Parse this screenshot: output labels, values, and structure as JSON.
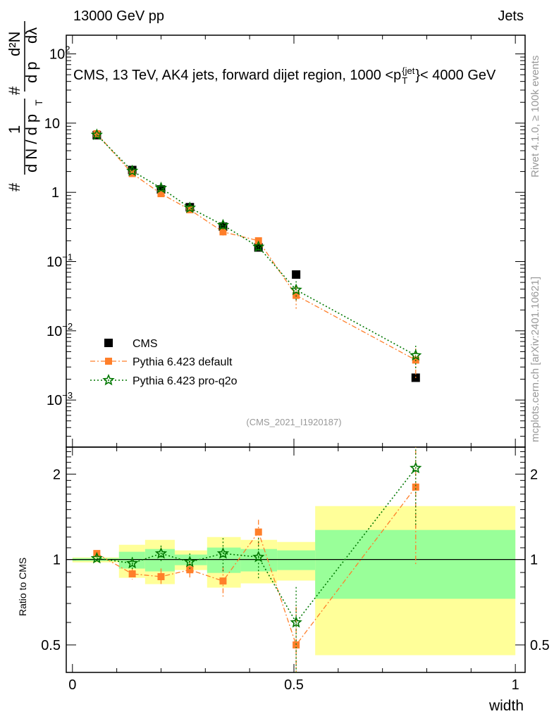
{
  "header": {
    "left": "13000 GeV pp",
    "right": "Jets"
  },
  "side_labels": {
    "rivet": "Rivet 4.1.0, ≥ 100k events",
    "mcplots": "mcplots.cern.ch [arXiv:2401.10621]"
  },
  "colors": {
    "cms": "#000000",
    "default": "#ff7f2a",
    "proq2o": "#007700",
    "band_yellow": "#ffff99",
    "band_green": "#99ff99"
  },
  "chart_data": {
    "type": "line",
    "title": "CMS, 13 TeV, AK4 jets, forward dijet region, 1000 <p_T^{jet}< 4000 GeV",
    "title_parts": {
      "main": "CMS, 13 TeV, AK4 jets, forward dijet region, 1000 <p",
      "sup": "{jet",
      "sub": "T",
      "tail": "}< 4000 GeV"
    },
    "ylabel_parts": {
      "num1": "1",
      "den1": "d N / d p",
      "sub": "T",
      "hash": "#",
      "num2": "d²N",
      "den2": "d p",
      "den2b": "dλ",
      "hash2": "#"
    },
    "xlabel": "width",
    "ratio_ylabel": "Ratio to CMS",
    "analysis_label": "(CMS_2021_I1920187)",
    "x": [
      0.055,
      0.135,
      0.2,
      0.265,
      0.34,
      0.42,
      0.505,
      0.775
    ],
    "bin_edges": [
      0,
      0.105,
      0.164,
      0.231,
      0.304,
      0.38,
      0.462,
      0.548,
      1.0
    ],
    "xlim": [
      -0.014,
      1.022
    ],
    "main_ylim_log10": [
      -3.68,
      2.27
    ],
    "ratio_ylim": [
      0.4,
      2.49
    ],
    "x_ticks": [
      {
        "v": 0,
        "label": "0"
      },
      {
        "v": 0.5,
        "label": "0.5"
      },
      {
        "v": 1,
        "label": "1"
      }
    ],
    "y_ticks": [
      {
        "v": 2,
        "base": "10",
        "exp": "2"
      },
      {
        "v": 1,
        "base": "10",
        "exp": ""
      },
      {
        "v": 0,
        "base": "1",
        "exp": ""
      },
      {
        "v": -1,
        "base": "10",
        "exp": "−1"
      },
      {
        "v": -2,
        "base": "10",
        "exp": "−2"
      },
      {
        "v": -3,
        "base": "10",
        "exp": "−3"
      }
    ],
    "ratio_ticks": [
      {
        "v": 0.5,
        "label": "0.5"
      },
      {
        "v": 1,
        "label": "1"
      },
      {
        "v": 2,
        "label": "2"
      }
    ],
    "series": [
      {
        "name": "CMS",
        "key": "cms",
        "values": [
          6.7,
          2.1,
          1.1,
          0.61,
          0.32,
          0.16,
          0.065,
          0.0021
        ]
      },
      {
        "name": "Pythia 6.423 default",
        "key": "default",
        "ratio": [
          1.05,
          0.89,
          0.87,
          0.92,
          0.84,
          1.25,
          0.5,
          1.8
        ],
        "ratio_err": [
          0.01,
          0.04,
          0.06,
          0.06,
          0.1,
          0.13,
          0.18,
          0.85
        ]
      },
      {
        "name": "Pythia 6.423 pro-q2o",
        "key": "proq2o",
        "ratio": [
          1.01,
          0.97,
          1.05,
          0.98,
          1.05,
          1.02,
          0.6,
          2.1
        ],
        "ratio_err": [
          0.02,
          0.05,
          0.07,
          0.07,
          0.14,
          0.17,
          0.2,
          0.8
        ]
      }
    ],
    "bands_total": [
      [
        0.977,
        1.017
      ],
      [
        0.862,
        1.127
      ],
      [
        0.819,
        1.173
      ],
      [
        0.918,
        1.077
      ],
      [
        0.796,
        1.2
      ],
      [
        0.824,
        1.173
      ],
      [
        0.843,
        1.153
      ],
      [
        0.46,
        1.543
      ]
    ],
    "bands_stat": [
      [
        0.989,
        1.011
      ],
      [
        0.929,
        1.065
      ],
      [
        0.908,
        1.089
      ],
      [
        0.955,
        1.041
      ],
      [
        0.897,
        1.102
      ],
      [
        0.908,
        1.089
      ],
      [
        0.918,
        1.077
      ],
      [
        0.727,
        1.271
      ]
    ],
    "legend": {
      "placement": "bottom-left",
      "entries": [
        "CMS",
        "Pythia 6.423 default",
        "Pythia 6.423 pro-q2o"
      ]
    }
  }
}
